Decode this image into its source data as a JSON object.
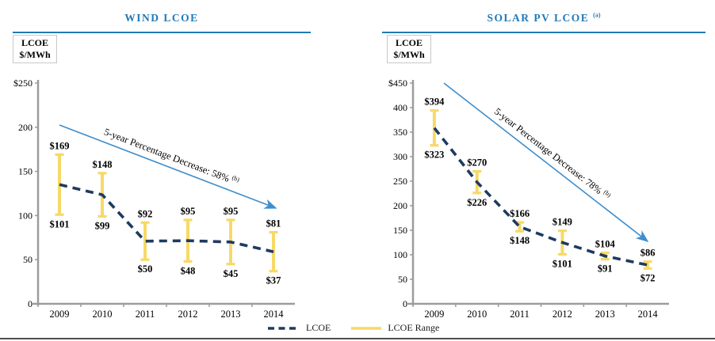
{
  "colors": {
    "title_blue": "#1F7AB8",
    "arrow_blue": "#3E8ECC",
    "lcoe_navy": "#1F3A5F",
    "range_yellow": "#F7D967",
    "axis_gray": "#9C9C9C",
    "label_black": "#000000",
    "bottom_rule_gray": "#4D4D4D"
  },
  "legend": {
    "items": [
      {
        "label": "LCOE",
        "swatch": "dashed-navy-line"
      },
      {
        "label": "LCOE Range",
        "swatch": "solid-yellow-line"
      }
    ],
    "position": "bottom-center-shared"
  },
  "chart_data": [
    {
      "type": "line",
      "title": "WIND LCOE",
      "title_superscript": "",
      "ylabel": "LCOE $/MWh",
      "ylabel_line1": "LCOE",
      "ylabel_line2": "$/MWh",
      "categories": [
        "2009",
        "2010",
        "2011",
        "2012",
        "2013",
        "2014"
      ],
      "series": [
        {
          "name": "LCOE",
          "style": "dashed-line",
          "values": [
            135,
            123.5,
            71,
            71.5,
            70,
            59
          ]
        },
        {
          "name": "LCOE Range",
          "style": "range-bar",
          "high": [
            169,
            148,
            92,
            95,
            95,
            81
          ],
          "low": [
            101,
            99,
            50,
            48,
            45,
            37
          ]
        }
      ],
      "value_prefix": "$",
      "high_labels": [
        "$169",
        "$148",
        "$92",
        "$95",
        "$95",
        "$81"
      ],
      "low_labels": [
        "$101",
        "$99",
        "$50",
        "$48",
        "$45",
        "$37"
      ],
      "ylim": [
        0,
        250
      ],
      "y_tick_step": 50,
      "y_tick_labels": [
        "$250",
        "200",
        "150",
        "100",
        "50",
        "0"
      ],
      "grid": false,
      "annotation": {
        "text": "5-year Percentage Decrease: 58%",
        "superscript": "(b)"
      }
    },
    {
      "type": "line",
      "title": "SOLAR PV LCOE",
      "title_superscript": "(a)",
      "ylabel": "LCOE $/MWh",
      "ylabel_line1": "LCOE",
      "ylabel_line2": "$/MWh",
      "categories": [
        "2009",
        "2010",
        "2011",
        "2012",
        "2013",
        "2014"
      ],
      "series": [
        {
          "name": "LCOE",
          "style": "dashed-line",
          "values": [
            358.5,
            248,
            157,
            125,
            97.5,
            79
          ]
        },
        {
          "name": "LCOE Range",
          "style": "range-bar",
          "high": [
            394,
            270,
            166,
            149,
            104,
            86
          ],
          "low": [
            323,
            226,
            148,
            101,
            91,
            72
          ]
        }
      ],
      "value_prefix": "$",
      "high_labels": [
        "$394",
        "$270",
        "$166",
        "$149",
        "$104",
        "$86"
      ],
      "low_labels": [
        "$323",
        "$226",
        "$148",
        "$101",
        "$91",
        "$72"
      ],
      "ylim": [
        0,
        450
      ],
      "y_tick_step": 50,
      "y_tick_labels": [
        "$450",
        "400",
        "350",
        "300",
        "250",
        "200",
        "150",
        "100",
        "50",
        "0"
      ],
      "grid": false,
      "annotation": {
        "text": "5-year Percentage Decrease: 78%",
        "superscript": "(b)"
      }
    }
  ]
}
